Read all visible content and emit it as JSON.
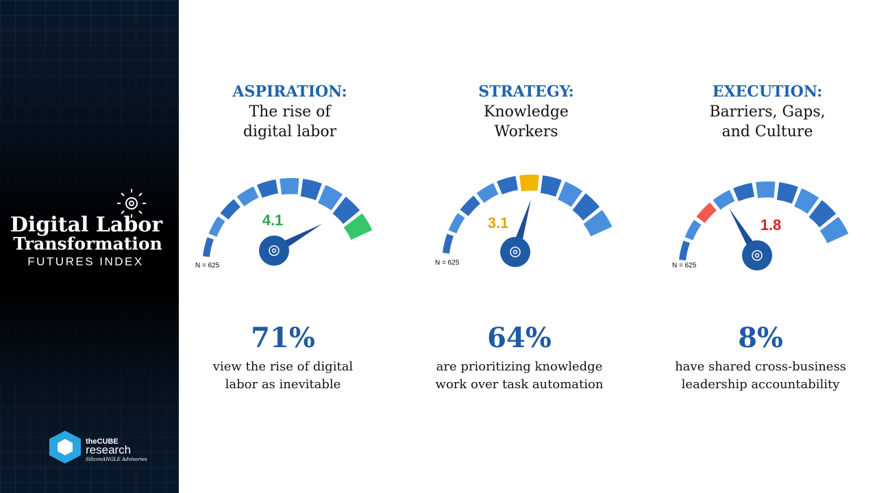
{
  "sidebar": {
    "title_lines": [
      "Digital Labor",
      "Transformation"
    ],
    "subtitle": "FUTURES INDEX",
    "logo": {
      "brand": "theCUBE",
      "name": "research",
      "tagline": "SiliconANGLE Advisories"
    }
  },
  "panels": [
    {
      "heading": "ASPIRATION:",
      "subtitle_lines": [
        "The rise of",
        "digital labor"
      ],
      "gauge_value": 4.1,
      "sample_note": "N = 625",
      "stat": "71%",
      "description_lines": [
        "view the rise of digital",
        "labor as inevitable"
      ]
    },
    {
      "heading": "STRATEGY:",
      "subtitle_lines": [
        "Knowledge",
        "Workers"
      ],
      "gauge_value": 3.1,
      "sample_note": "N = 625",
      "stat": "64%",
      "description_lines": [
        "are prioritizing knowledge",
        "work over task automation"
      ]
    },
    {
      "heading": "EXECUTION:",
      "subtitle_lines": [
        "Barriers, Gaps,",
        "and Culture"
      ],
      "gauge_value": 1.8,
      "sample_note": "N = 625",
      "stat": "8%",
      "description_lines": [
        "have shared cross-business",
        "leadership accountability"
      ]
    }
  ]
}
